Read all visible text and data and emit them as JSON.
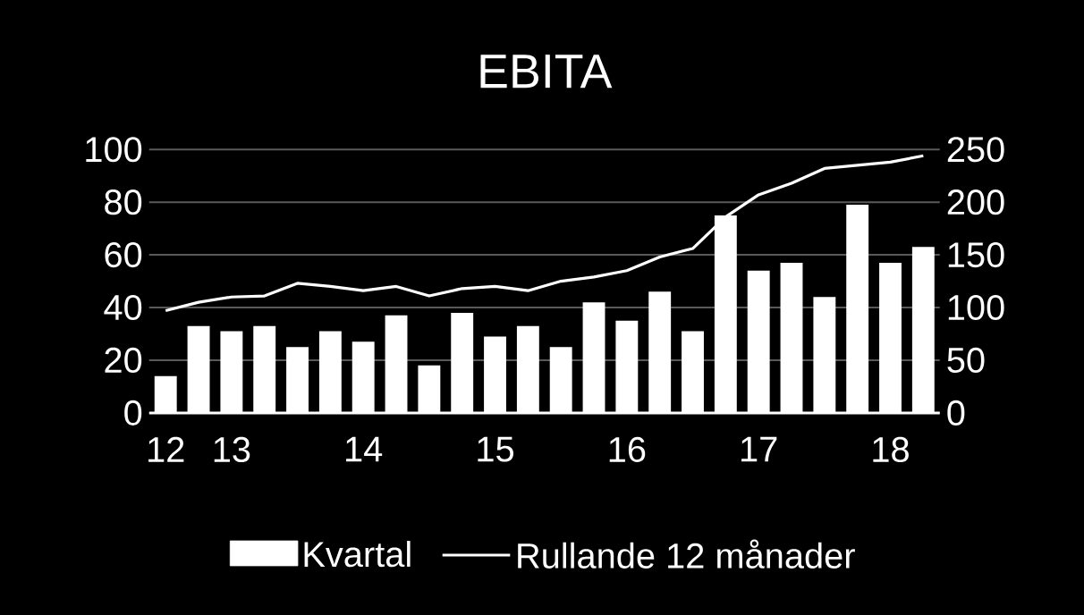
{
  "chart_data": {
    "type": "bar",
    "title": "EBITA",
    "categories": [
      "12",
      null,
      "13",
      null,
      null,
      null,
      "14",
      null,
      null,
      null,
      "15",
      null,
      null,
      null,
      "16",
      null,
      null,
      null,
      "17",
      null,
      null,
      null,
      "18",
      null
    ],
    "series": [
      {
        "name": "Kvartal",
        "color": "#ffffff",
        "values": [
          14,
          33,
          31,
          33,
          25,
          31,
          27,
          37,
          18,
          38,
          29,
          33,
          25,
          42,
          35,
          46,
          31,
          75,
          54,
          57,
          44,
          79,
          57,
          63
        ]
      },
      {
        "name": "Rullande 12 månader",
        "type": "line",
        "axis": "y2",
        "color": "#ffffff",
        "marker": "none",
        "values": [
          97,
          105,
          110,
          111,
          123,
          120,
          116,
          120,
          111,
          118,
          120,
          116,
          125,
          129,
          135,
          148,
          156,
          186,
          207,
          218,
          232,
          235,
          238,
          244
        ]
      }
    ],
    "ylim": [
      0,
      100
    ],
    "yticks": [
      0,
      20,
      40,
      60,
      80,
      100
    ],
    "y2lim": [
      0,
      250
    ],
    "y2ticks": [
      0,
      50,
      100,
      150,
      200,
      250
    ],
    "grid": "y",
    "legend": "bottom"
  }
}
